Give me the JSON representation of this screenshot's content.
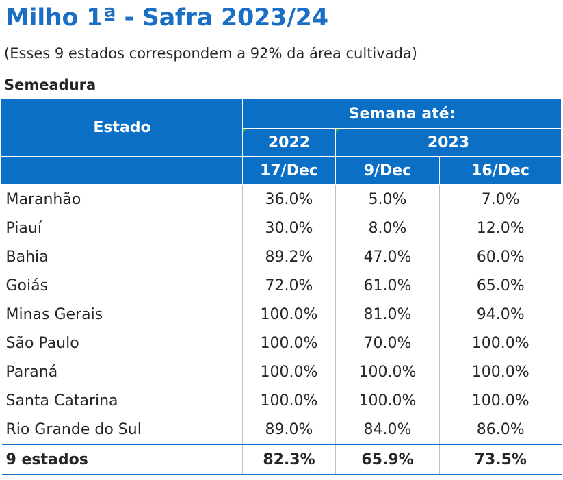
{
  "title": "Milho 1ª - Safra 2023/24",
  "subtitle": "(Esses 9 estados correspondem a 92% da área cultivada)",
  "section": "Semeadura",
  "table": {
    "header_estado": "Estado",
    "header_semana": "Semana até:",
    "year_2022": "2022",
    "year_2023": "2023",
    "dates": [
      "17/Dec",
      "9/Dec",
      "16/Dec"
    ],
    "rows": [
      {
        "estado": "Maranhão",
        "v1": "36.0%",
        "v2": "5.0%",
        "v3": "7.0%"
      },
      {
        "estado": "Piauí",
        "v1": "30.0%",
        "v2": "8.0%",
        "v3": "12.0%"
      },
      {
        "estado": "Bahia",
        "v1": "89.2%",
        "v2": "47.0%",
        "v3": "60.0%"
      },
      {
        "estado": "Goiás",
        "v1": "72.0%",
        "v2": "61.0%",
        "v3": "65.0%"
      },
      {
        "estado": "Minas Gerais",
        "v1": "100.0%",
        "v2": "81.0%",
        "v3": "94.0%"
      },
      {
        "estado": "São Paulo",
        "v1": "100.0%",
        "v2": "70.0%",
        "v3": "100.0%"
      },
      {
        "estado": "Paraná",
        "v1": "100.0%",
        "v2": "100.0%",
        "v3": "100.0%"
      },
      {
        "estado": "Santa Catarina",
        "v1": "100.0%",
        "v2": "100.0%",
        "v3": "100.0%"
      },
      {
        "estado": "Rio Grande do Sul",
        "v1": "89.0%",
        "v2": "84.0%",
        "v3": "86.0%"
      }
    ],
    "total": {
      "estado": "9 estados",
      "v1": "82.3%",
      "v2": "65.9%",
      "v3": "73.5%"
    }
  },
  "colors": {
    "header_bg": "#0b6fc6",
    "title": "#1a6fc4"
  }
}
